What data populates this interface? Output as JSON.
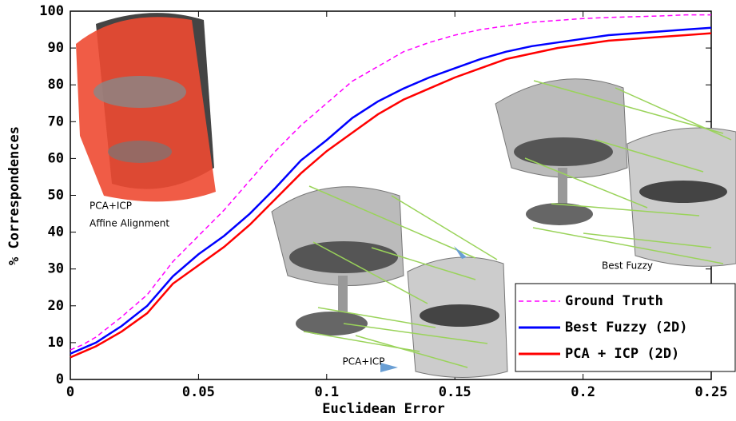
{
  "chart_data": {
    "type": "line",
    "xlabel": "Euclidean Error",
    "ylabel": "% Correspondences",
    "x": [
      0,
      0.005,
      0.01,
      0.02,
      0.03,
      0.04,
      0.05,
      0.06,
      0.07,
      0.08,
      0.09,
      0.1,
      0.11,
      0.12,
      0.13,
      0.14,
      0.15,
      0.16,
      0.17,
      0.18,
      0.19,
      0.2,
      0.21,
      0.22,
      0.23,
      0.24,
      0.25
    ],
    "series": [
      {
        "name": "Ground Truth",
        "color": "#ff00ff",
        "linestyle": "dashed",
        "values": [
          8,
          9.5,
          11.5,
          17,
          23,
          32,
          39,
          46,
          54,
          62,
          69,
          75,
          81,
          85,
          89,
          91.5,
          93.5,
          95,
          96,
          97,
          97.5,
          98,
          98.3,
          98.5,
          98.7,
          99,
          99
        ]
      },
      {
        "name": "Best Fuzzy (2D)",
        "color": "#0000ff",
        "linestyle": "solid",
        "values": [
          7,
          8.5,
          10,
          14.5,
          20,
          28,
          34,
          39,
          45,
          52,
          59.5,
          65,
          71,
          75.5,
          79,
          82,
          84.5,
          87,
          89,
          90.5,
          91.5,
          92.5,
          93.5,
          94,
          94.5,
          95,
          95.5
        ]
      },
      {
        "name": "PCA + ICP (2D)",
        "color": "#ff0000",
        "linestyle": "solid",
        "values": [
          6,
          7.5,
          9,
          13,
          18,
          26,
          31,
          36,
          42,
          49,
          56,
          62,
          67,
          72,
          76,
          79,
          82,
          84.5,
          87,
          88.5,
          90,
          91,
          92,
          92.5,
          93,
          93.5,
          94
        ]
      }
    ],
    "xlim": [
      0,
      0.25
    ],
    "xticks": [
      0,
      0.05,
      0.1,
      0.15,
      0.2,
      0.25
    ],
    "ylim": [
      0,
      100
    ],
    "yticks": [
      0,
      10,
      20,
      30,
      40,
      50,
      60,
      70,
      80,
      90,
      100
    ],
    "grid": false,
    "legend_loc": "lower right",
    "annotations": [
      "PCA+ICP",
      "Affine Alignment",
      "Best Fuzzy",
      "PCA+ICP"
    ]
  }
}
